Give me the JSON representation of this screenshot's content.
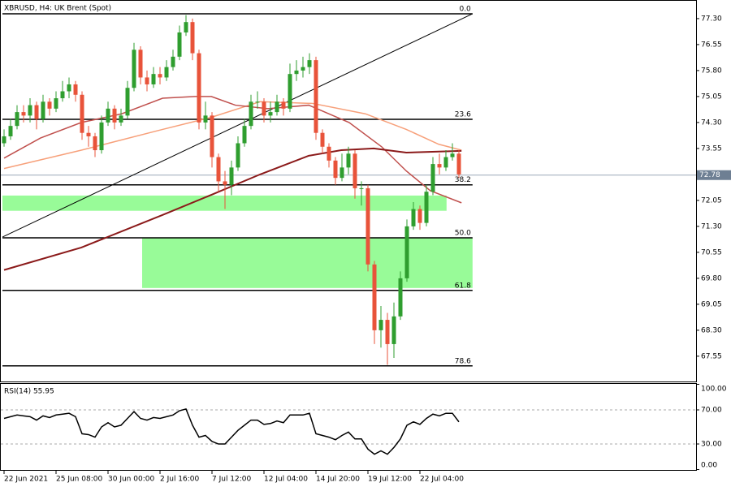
{
  "chart_data": {
    "type": "candlestick",
    "title": "XBRUSD, H4:  UK Brent (Spot)",
    "bull_color": "#2f9e2f",
    "bear_color": "#e8533a",
    "open": [
      73.7,
      73.9,
      74.2,
      74.6,
      74.5,
      74.8,
      74.4,
      74.9,
      74.7,
      75.0,
      75.2,
      75.4,
      75.1,
      74.0,
      73.9,
      73.5,
      74.3,
      74.7,
      74.3,
      74.5,
      75.3,
      76.4,
      75.6,
      75.4,
      75.7,
      75.6,
      75.9,
      76.2,
      76.9,
      77.2,
      76.3,
      74.3,
      74.5,
      73.3,
      72.6,
      72.5,
      73.0,
      73.7,
      74.2,
      74.9,
      74.9,
      74.5,
      74.6,
      74.9,
      74.7,
      75.7,
      75.8,
      75.9,
      76.1,
      74.0,
      73.6,
      73.2,
      72.7,
      73.0,
      73.4,
      72.4,
      72.4,
      70.2,
      68.3,
      68.6,
      67.9,
      68.7,
      69.8,
      71.3,
      71.8,
      71.4,
      72.3,
      73.1,
      73.0,
      73.3,
      73.4
    ],
    "high": [
      74.1,
      74.4,
      74.8,
      74.8,
      75.0,
      74.9,
      75.1,
      75.0,
      75.2,
      75.5,
      75.6,
      75.5,
      75.2,
      74.2,
      74.0,
      74.5,
      74.9,
      74.8,
      74.7,
      75.5,
      76.6,
      76.5,
      75.8,
      75.9,
      75.9,
      76.1,
      76.4,
      77.1,
      77.4,
      77.3,
      76.4,
      74.9,
      74.6,
      73.4,
      72.9,
      73.2,
      73.9,
      74.4,
      75.1,
      75.2,
      75.0,
      74.9,
      75.1,
      75.0,
      76.0,
      76.1,
      76.2,
      76.3,
      76.2,
      74.1,
      73.7,
      73.3,
      73.4,
      73.6,
      73.5,
      72.6,
      72.5,
      70.3,
      69.0,
      68.8,
      69.1,
      70.0,
      71.5,
      72.0,
      71.9,
      72.5,
      73.3,
      73.4,
      73.5,
      73.7,
      73.5
    ],
    "low": [
      73.6,
      73.8,
      74.1,
      74.3,
      74.3,
      74.1,
      74.3,
      74.5,
      74.6,
      74.9,
      75.0,
      74.9,
      73.8,
      73.6,
      73.3,
      73.4,
      74.2,
      74.1,
      74.2,
      74.4,
      75.2,
      75.4,
      75.2,
      75.3,
      75.4,
      75.5,
      75.8,
      76.1,
      76.8,
      76.1,
      74.1,
      74.1,
      73.0,
      72.3,
      71.8,
      72.2,
      72.9,
      73.6,
      74.1,
      74.7,
      74.3,
      74.3,
      74.5,
      74.5,
      74.6,
      75.5,
      75.6,
      75.7,
      73.8,
      73.4,
      73.0,
      72.5,
      72.6,
      72.8,
      72.1,
      71.9,
      70.0,
      67.9,
      67.8,
      67.3,
      67.5,
      68.6,
      69.7,
      71.2,
      71.2,
      71.3,
      72.2,
      72.8,
      72.9,
      73.2,
      72.7
    ],
    "close": [
      73.9,
      74.2,
      74.6,
      74.5,
      74.8,
      74.4,
      74.9,
      74.7,
      75.0,
      75.2,
      75.4,
      75.1,
      74.0,
      73.9,
      73.5,
      74.3,
      74.7,
      74.3,
      74.5,
      75.3,
      76.4,
      75.6,
      75.4,
      75.7,
      75.6,
      75.9,
      76.2,
      76.9,
      77.2,
      76.3,
      74.3,
      74.5,
      73.3,
      72.6,
      72.5,
      73.0,
      73.7,
      74.2,
      74.9,
      74.9,
      74.5,
      74.6,
      74.9,
      74.7,
      75.7,
      75.8,
      75.9,
      76.1,
      74.0,
      73.6,
      73.2,
      72.7,
      73.0,
      73.4,
      72.4,
      72.4,
      70.2,
      68.3,
      68.6,
      67.9,
      68.7,
      69.8,
      71.3,
      71.8,
      71.4,
      72.3,
      73.1,
      73.0,
      73.3,
      73.4,
      72.8
    ],
    "moving_averages": [
      {
        "color": "#f7a07a",
        "x": [
          0,
          11.9,
          24.4,
          31.9,
          39.4,
          47.5,
          55.6,
          61.9,
          66.9,
          70.4
        ],
        "values": [
          72.97,
          73.5,
          74.1,
          74.45,
          74.9,
          74.85,
          74.55,
          74.1,
          73.67,
          73.5
        ]
      },
      {
        "color": "#c0504d",
        "x": [
          0,
          5.6,
          11.9,
          18.1,
          24.4,
          29.4,
          31.9,
          35.6,
          40.6,
          46.9,
          53.1,
          58.1,
          61.9,
          65.6,
          70.4
        ],
        "values": [
          73.27,
          73.85,
          74.3,
          74.55,
          75.0,
          75.05,
          75.05,
          74.8,
          74.7,
          74.8,
          74.3,
          73.6,
          72.9,
          72.33,
          71.98
        ]
      },
      {
        "color": "#8b1a1a",
        "x": [
          0,
          11.9,
          24.4,
          31.9,
          39.4,
          46.9,
          51.9,
          56.9,
          61.9,
          70.4
        ],
        "values": [
          70.04,
          70.69,
          71.63,
          72.21,
          72.8,
          73.34,
          73.5,
          73.55,
          73.43,
          73.48
        ]
      }
    ],
    "trendline": {
      "x": [
        -0.25,
        72.1
      ],
      "values": [
        70.99,
        77.44
      ]
    },
    "fib_x": [
      -0.25,
      72.1
    ],
    "fib_levels": [
      {
        "label": "0.0",
        "price": 77.44
      },
      {
        "label": "23.6",
        "price": 74.39
      },
      {
        "label": "38.2",
        "price": 72.5
      },
      {
        "label": "50.0",
        "price": 70.97
      },
      {
        "label": "61.8",
        "price": 69.45
      },
      {
        "label": "78.6",
        "price": 67.27
      }
    ],
    "zones": [
      {
        "x": [
          -0.25,
          68.1
        ],
        "range": [
          71.75,
          72.19
        ],
        "color": "#98fb98"
      },
      {
        "x": [
          21.25,
          72.1
        ],
        "range": [
          69.52,
          70.97
        ],
        "color": "#98fb98"
      }
    ],
    "current_price": 72.78,
    "xlim": [
      -0.25,
      106.5
    ],
    "xticks": [
      {
        "value": 0,
        "label": "22 Jun 2021"
      },
      {
        "value": 8,
        "label": "25 Jun 08:00"
      },
      {
        "value": 16,
        "label": "30 Jun 00:00"
      },
      {
        "value": 24,
        "label": "2 Jul 16:00"
      },
      {
        "value": 32,
        "label": "7 Jul 12:00"
      },
      {
        "value": 40,
        "label": "12 Jul 04:00"
      },
      {
        "value": 48,
        "label": "14 Jul 20:00"
      },
      {
        "value": 56,
        "label": "19 Jul 12:00"
      },
      {
        "value": 64,
        "label": "22 Jul 04:00"
      }
    ],
    "ylim": [
      66.82,
      77.72
    ],
    "yticks": [
      {
        "value": 77.3,
        "label": "77.30"
      },
      {
        "value": 76.55,
        "label": "76.55"
      },
      {
        "value": 75.8,
        "label": "75.80"
      },
      {
        "value": 75.05,
        "label": "75.05"
      },
      {
        "value": 74.3,
        "label": "74.30"
      },
      {
        "value": 73.55,
        "label": "73.55"
      },
      {
        "value": 72.05,
        "label": "72.05"
      },
      {
        "value": 71.3,
        "label": "71.30"
      },
      {
        "value": 70.55,
        "label": "70.55"
      },
      {
        "value": 69.8,
        "label": "69.80"
      },
      {
        "value": 69.05,
        "label": "69.05"
      },
      {
        "value": 68.3,
        "label": "68.30"
      },
      {
        "value": 67.55,
        "label": "67.55"
      }
    ],
    "rsi": {
      "title": "RSI(14) 55.95",
      "color": "#000000",
      "values": [
        60,
        62,
        64,
        63,
        62,
        58,
        63,
        61,
        64,
        65,
        66,
        62,
        42,
        41,
        38,
        50,
        55,
        50,
        52,
        60,
        68,
        60,
        58,
        61,
        60,
        62,
        64,
        69,
        71,
        52,
        38,
        40,
        33,
        30,
        30,
        38,
        46,
        52,
        58,
        58,
        53,
        54,
        57,
        55,
        64,
        64,
        64,
        66,
        42,
        40,
        38,
        35,
        40,
        44,
        36,
        36,
        24,
        18,
        22,
        18,
        26,
        36,
        52,
        56,
        53,
        60,
        65,
        63,
        66,
        66,
        55.95
      ],
      "ylim": [
        -1.4,
        101.4
      ],
      "yticks": [
        {
          "value": 100,
          "label": "100.00"
        },
        {
          "value": 70,
          "label": "70.00"
        },
        {
          "value": 30,
          "label": "30.00"
        },
        {
          "value": 0,
          "label": "0.00"
        }
      ],
      "levels": [
        70,
        30
      ]
    }
  }
}
